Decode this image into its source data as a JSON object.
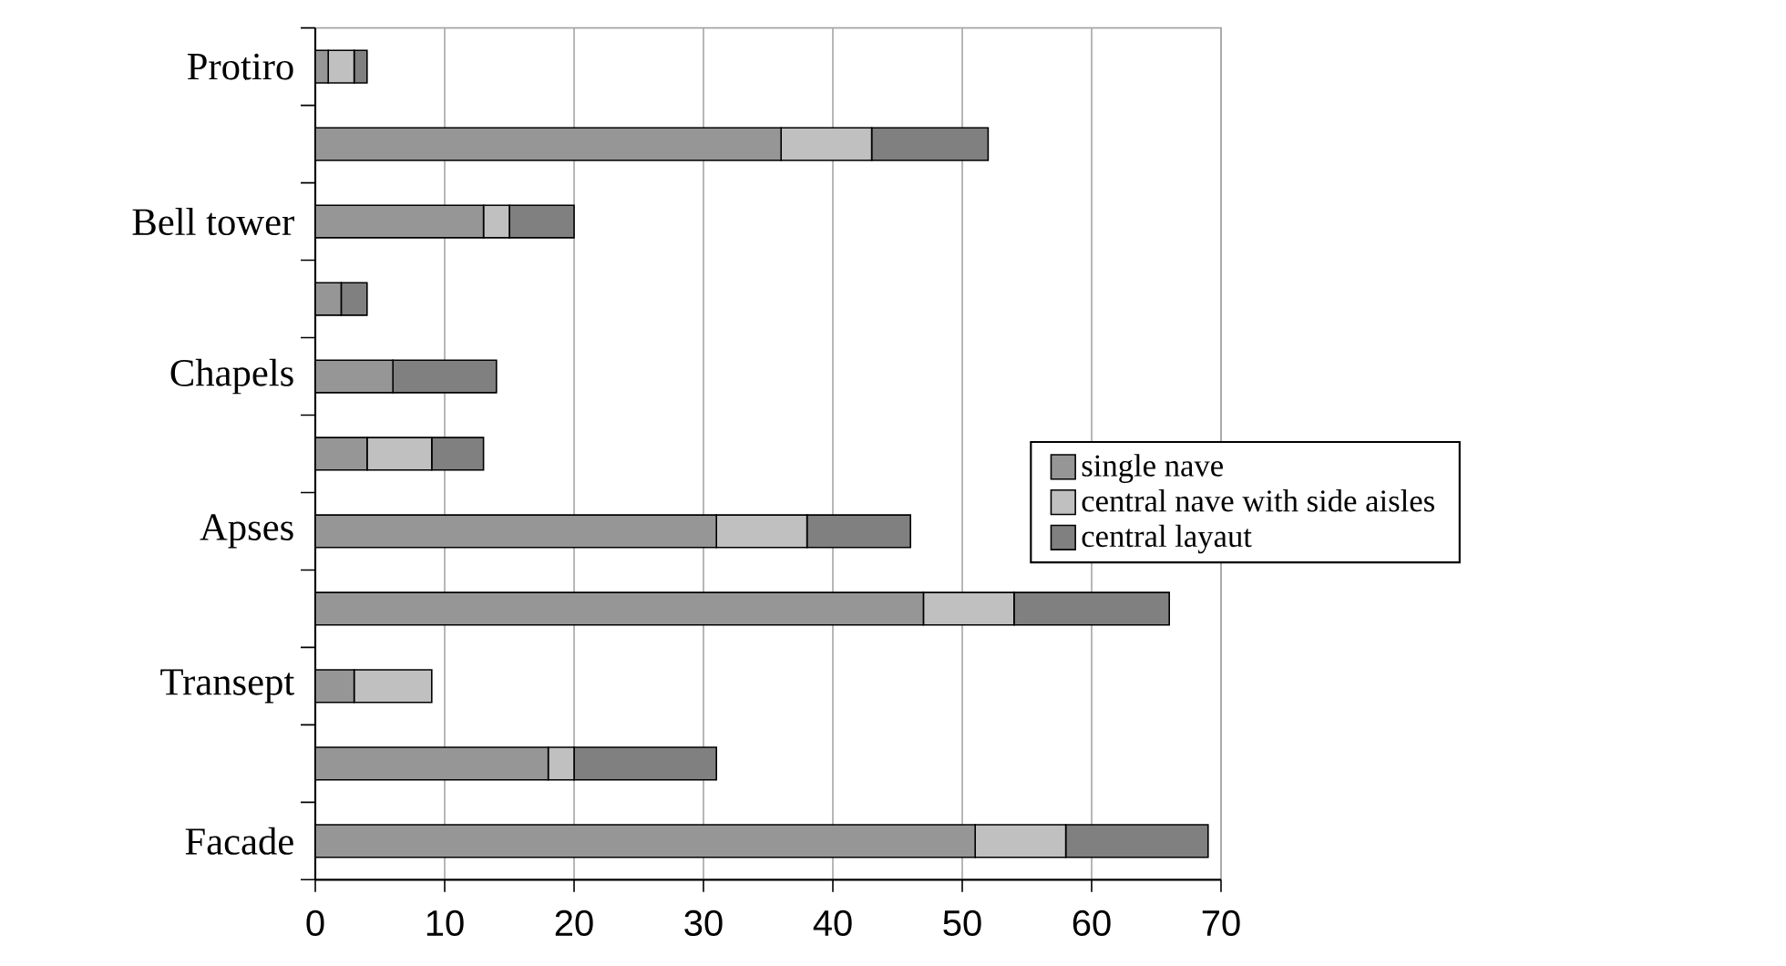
{
  "chart_data": {
    "type": "bar",
    "orientation": "horizontal",
    "stacked": true,
    "categories": [
      "Protiro",
      null,
      "Bell tower",
      null,
      "Chapels",
      null,
      "Apses",
      null,
      "Transept",
      null,
      "Facade"
    ],
    "series": [
      {
        "name": "single nave",
        "color": "#969696",
        "values": [
          1,
          36,
          13,
          2,
          6,
          4,
          31,
          47,
          3,
          18,
          51
        ]
      },
      {
        "name": "central nave with side aisles",
        "color": "#c0c0c0",
        "values": [
          2,
          7,
          2,
          0,
          0,
          5,
          7,
          7,
          6,
          2,
          7
        ]
      },
      {
        "name": "central layaut",
        "color": "#808080",
        "values": [
          1,
          9,
          5,
          2,
          8,
          4,
          8,
          12,
          0,
          11,
          11
        ]
      }
    ],
    "xlim": [
      0,
      70
    ],
    "xticks": [
      0,
      10,
      20,
      30,
      40,
      50,
      60,
      70
    ],
    "grid": "x",
    "legend": "right"
  }
}
